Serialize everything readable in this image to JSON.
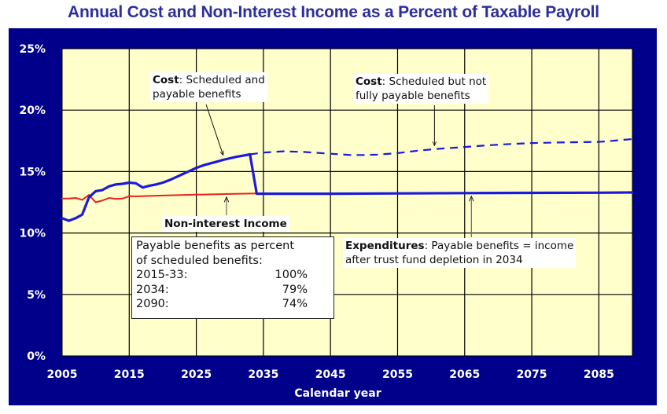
{
  "chart_data": {
    "type": "line",
    "title": "Annual Cost and Non-Interest Income as a Percent of Taxable Payroll",
    "xlabel": "Calendar year",
    "ylabel": "",
    "xlim": [
      2005,
      2090
    ],
    "ylim": [
      0,
      25
    ],
    "grid": true,
    "x_ticks": [
      "2005",
      "2015",
      "2025",
      "2035",
      "2045",
      "2055",
      "2065",
      "2075",
      "2085"
    ],
    "y_ticks": [
      "0%",
      "5%",
      "10%",
      "15%",
      "20%",
      "25%"
    ],
    "series": [
      {
        "name": "Cost: Scheduled and payable benefits",
        "style": "solid",
        "color": "#1a1adc",
        "x": [
          2005,
          2006,
          2007,
          2008,
          2009,
          2010,
          2011,
          2012,
          2013,
          2014,
          2015,
          2016,
          2017,
          2018,
          2019,
          2020,
          2021,
          2022,
          2023,
          2024,
          2025,
          2026,
          2027,
          2028,
          2029,
          2030,
          2031,
          2032,
          2033
        ],
        "values": [
          11.2,
          11.0,
          11.2,
          11.5,
          12.9,
          13.4,
          13.5,
          13.8,
          13.95,
          14.0,
          14.1,
          14.05,
          13.7,
          13.85,
          13.95,
          14.1,
          14.3,
          14.55,
          14.8,
          15.05,
          15.3,
          15.5,
          15.65,
          15.8,
          15.95,
          16.08,
          16.2,
          16.3,
          16.4
        ]
      },
      {
        "name": "Cost: Scheduled but not fully payable benefits",
        "style": "dashed",
        "color": "#1a1adc",
        "x": [
          2033,
          2035,
          2038,
          2041,
          2045,
          2048,
          2050,
          2052,
          2055,
          2058,
          2061,
          2065,
          2068,
          2071,
          2075,
          2080,
          2085,
          2088,
          2090
        ],
        "values": [
          16.4,
          16.55,
          16.65,
          16.6,
          16.45,
          16.35,
          16.35,
          16.38,
          16.5,
          16.7,
          16.85,
          17.0,
          17.12,
          17.22,
          17.32,
          17.38,
          17.42,
          17.55,
          17.65
        ]
      },
      {
        "name": "Expenditures: Payable benefits = income after trust fund depletion in 2034",
        "style": "solid",
        "color": "#1a1adc",
        "x": [
          2033,
          2034,
          2045,
          2055,
          2065,
          2075,
          2085,
          2090
        ],
        "values": [
          16.4,
          13.2,
          13.2,
          13.22,
          13.25,
          13.27,
          13.28,
          13.3
        ]
      },
      {
        "name": "Non-interest Income",
        "style": "solid",
        "color": "#e8231b",
        "x": [
          2005,
          2006,
          2007,
          2008,
          2009,
          2010,
          2011,
          2012,
          2013,
          2014,
          2015,
          2016,
          2020,
          2025,
          2030,
          2034
        ],
        "values": [
          12.8,
          12.8,
          12.85,
          12.7,
          13.1,
          12.5,
          12.65,
          12.85,
          12.78,
          12.8,
          13.0,
          12.98,
          13.05,
          13.12,
          13.18,
          13.22
        ]
      }
    ],
    "annotations": [
      {
        "text_bold": "Cost",
        "text": ": Scheduled and payable benefits",
        "points_to": "Cost: Scheduled and payable benefits"
      },
      {
        "text_bold": "Cost",
        "text": ": Scheduled but not fully payable benefits",
        "points_to": "Cost: Scheduled but not fully payable benefits"
      },
      {
        "text_bold": "",
        "text": "Non-interest Income",
        "points_to": "Non-interest Income"
      },
      {
        "text_bold": "Expenditures",
        "text": ": Payable benefits = income after trust fund depletion in 2034",
        "points_to": "Expenditures"
      }
    ],
    "table": {
      "heading": "Payable benefits as percent of scheduled benefits:",
      "rows": [
        {
          "period": "2015-33:",
          "value": "100%"
        },
        {
          "period": "2034:",
          "value": "79%"
        },
        {
          "period": "2090:",
          "value": "74%"
        }
      ]
    }
  },
  "labels": {
    "title": "Annual Cost and Non-Interest Income as a Percent of Taxable Payroll",
    "xlabel": "Calendar year",
    "note_cost_sched_bold": "Cost",
    "note_cost_sched_line1": ": Scheduled and",
    "note_cost_sched_line2": "payable benefits",
    "note_cost_notpay_bold": "Cost",
    "note_cost_notpay_line1": ": Scheduled but not",
    "note_cost_notpay_line2": "fully payable benefits",
    "note_income": "Non-interest Income",
    "note_exp_bold": "Expenditures",
    "note_exp_line1": ": Payable benefits = income",
    "note_exp_line2": "after trust fund depletion in 2034",
    "box_line1": "Payable benefits as percent",
    "box_line2": "of scheduled benefits:",
    "box_rows": [
      {
        "period": "2015-33:",
        "value": "100%"
      },
      {
        "period": "2034:",
        "value": "79%"
      },
      {
        "period": "2090:",
        "value": "74%"
      }
    ]
  },
  "colors": {
    "frame": "#00008b",
    "plot_bg": "#ffffcc",
    "cost": "#1a1adc",
    "income": "#e8231b",
    "title": "#2e2e9a"
  }
}
